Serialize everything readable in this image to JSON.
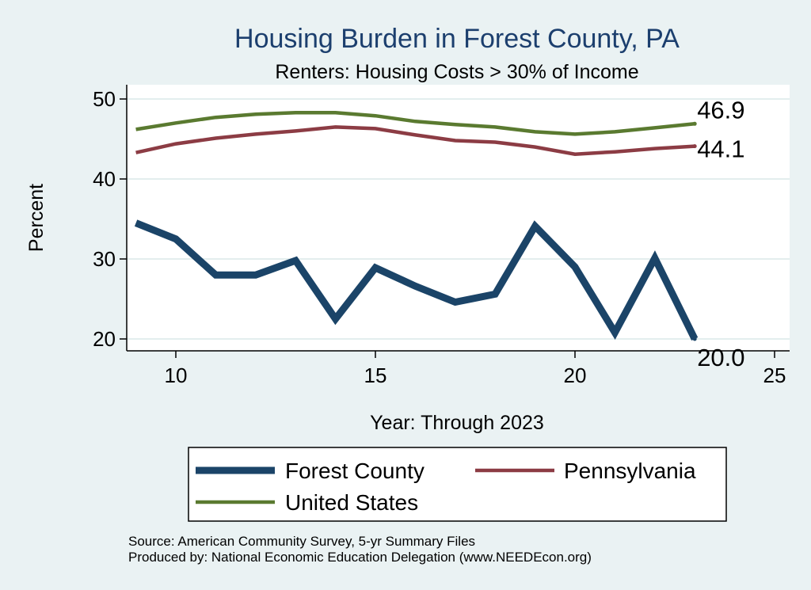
{
  "chart_data": {
    "type": "line",
    "title": "Housing Burden in Forest County, PA",
    "subtitle": "Renters: Housing Costs > 30% of Income",
    "xlabel": "Year: Through 2023",
    "ylabel": "Percent",
    "xlim": [
      9,
      25
    ],
    "ylim": [
      20,
      50
    ],
    "xticks": [
      10,
      15,
      20,
      25
    ],
    "yticks": [
      20,
      30,
      40,
      50
    ],
    "grid": true,
    "legend_position": "bottom",
    "x": [
      9,
      10,
      11,
      12,
      13,
      14,
      15,
      16,
      17,
      18,
      19,
      20,
      21,
      22,
      23
    ],
    "series": [
      {
        "name": "Forest County",
        "color": "#1b4468",
        "values": [
          34.5,
          32.5,
          28.0,
          28.0,
          29.8,
          22.5,
          28.9,
          26.6,
          24.6,
          25.6,
          34.1,
          29.0,
          20.8,
          30.1,
          20.0
        ],
        "end_label": "20.0"
      },
      {
        "name": "Pennsylvania",
        "color": "#8c3c44",
        "values": [
          43.3,
          44.4,
          45.1,
          45.6,
          46.0,
          46.5,
          46.3,
          45.5,
          44.8,
          44.6,
          44.0,
          43.1,
          43.4,
          43.8,
          44.1
        ],
        "end_label": "44.1"
      },
      {
        "name": "United States",
        "color": "#5a7a30",
        "values": [
          46.2,
          47.0,
          47.7,
          48.1,
          48.3,
          48.3,
          47.9,
          47.2,
          46.8,
          46.5,
          45.9,
          45.6,
          45.9,
          46.4,
          46.9
        ],
        "end_label": "46.9"
      }
    ]
  },
  "footer": {
    "source": "Source: American Community Survey, 5-yr Summary Files",
    "produced_by": "Produced by: National Economic Education Delegation (www.NEEDEcon.org)"
  }
}
